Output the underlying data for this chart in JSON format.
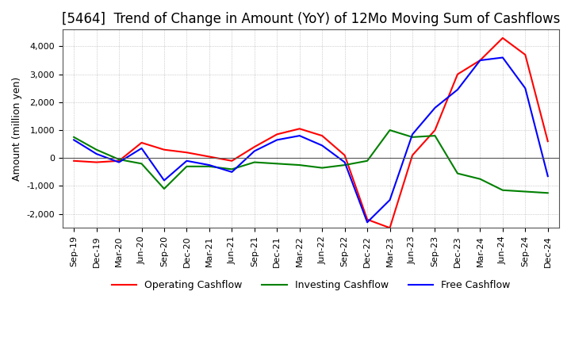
{
  "title": "[5464]  Trend of Change in Amount (YoY) of 12Mo Moving Sum of Cashflows",
  "ylabel": "Amount (million yen)",
  "x_labels": [
    "Sep-19",
    "Dec-19",
    "Mar-20",
    "Jun-20",
    "Sep-20",
    "Dec-20",
    "Mar-21",
    "Jun-21",
    "Sep-21",
    "Dec-21",
    "Mar-22",
    "Jun-22",
    "Sep-22",
    "Dec-22",
    "Mar-23",
    "Jun-23",
    "Sep-23",
    "Dec-23",
    "Mar-24",
    "Jun-24",
    "Sep-24",
    "Dec-24"
  ],
  "operating": [
    -100,
    -150,
    -100,
    550,
    300,
    200,
    50,
    -100,
    400,
    850,
    1050,
    800,
    100,
    -2200,
    -2500,
    100,
    1000,
    3000,
    3500,
    4300,
    3700,
    600
  ],
  "investing": [
    750,
    300,
    -50,
    -200,
    -1100,
    -300,
    -300,
    -400,
    -150,
    -200,
    -250,
    -350,
    -250,
    -100,
    1000,
    750,
    800,
    -550,
    -750,
    -1150,
    -1200,
    -1250
  ],
  "free": [
    650,
    150,
    -150,
    350,
    -800,
    -100,
    -250,
    -500,
    250,
    650,
    800,
    450,
    -150,
    -2300,
    -1500,
    850,
    1800,
    2450,
    3500,
    3600,
    2500,
    -650
  ],
  "ylim": [
    -2500,
    4600
  ],
  "yticks": [
    -2000,
    -1000,
    0,
    1000,
    2000,
    3000,
    4000
  ],
  "operating_color": "#ff0000",
  "investing_color": "#008000",
  "free_color": "#0000ff",
  "background_color": "#ffffff",
  "grid_color": "#aaaaaa",
  "title_fontsize": 12,
  "label_fontsize": 9,
  "tick_fontsize": 8,
  "legend_fontsize": 9
}
